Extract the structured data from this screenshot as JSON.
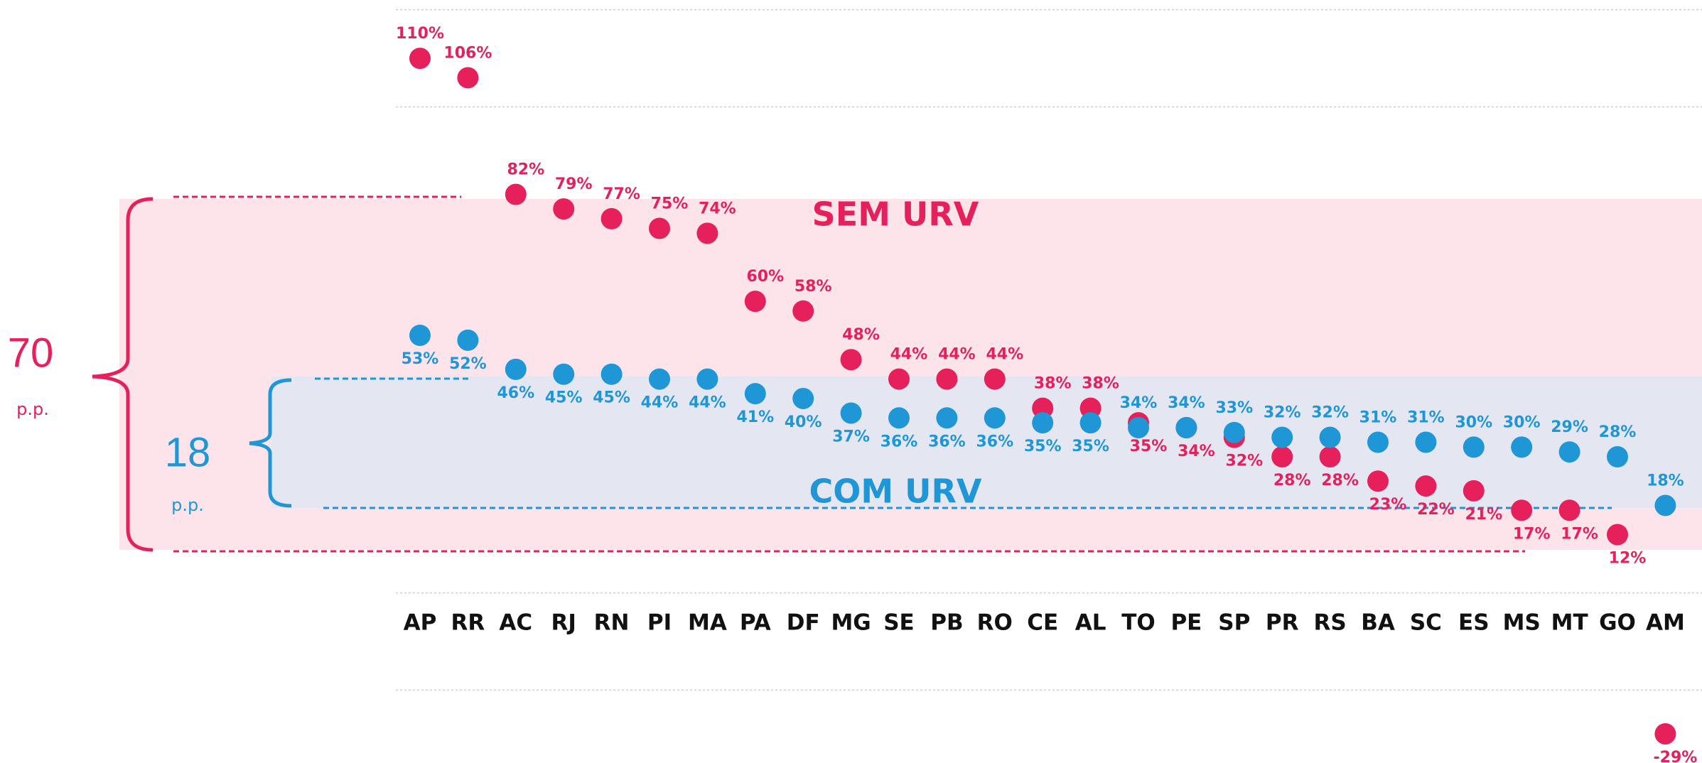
{
  "chart_data": {
    "type": "dot",
    "categories": [
      "AP",
      "RR",
      "AC",
      "RJ",
      "RN",
      "PI",
      "MA",
      "PA",
      "DF",
      "MG",
      "SE",
      "PB",
      "RO",
      "CE",
      "AL",
      "TO",
      "PE",
      "SP",
      "PR",
      "RS",
      "BA",
      "SC",
      "ES",
      "MS",
      "MT",
      "GO",
      "AM"
    ],
    "series": [
      {
        "name": "SEM URV",
        "color": "#e5205a",
        "values": [
          110,
          106,
          82,
          79,
          77,
          75,
          74,
          60,
          58,
          48,
          44,
          44,
          44,
          38,
          38,
          35,
          34,
          32,
          28,
          28,
          23,
          22,
          21,
          17,
          17,
          12,
          -29
        ],
        "value_labels": [
          "110%",
          "106%",
          "82%",
          "79%",
          "77%",
          "75%",
          "74%",
          "60%",
          "58%",
          "48%",
          "44%",
          "44%",
          "44%",
          "38%",
          "38%",
          "35%",
          "34%",
          "32%",
          "28%",
          "28%",
          "23%",
          "22%",
          "21%",
          "17%",
          "17%",
          "12%",
          "-29%"
        ]
      },
      {
        "name": "COM URV",
        "color": "#1f96d6",
        "values": [
          53,
          52,
          46,
          45,
          45,
          44,
          44,
          41,
          40,
          37,
          36,
          36,
          36,
          35,
          35,
          34,
          34,
          33,
          32,
          32,
          31,
          31,
          30,
          30,
          29,
          28,
          18
        ],
        "value_labels": [
          "53%",
          "52%",
          "46%",
          "45%",
          "45%",
          "44%",
          "44%",
          "41%",
          "40%",
          "37%",
          "36%",
          "36%",
          "36%",
          "35%",
          "35%",
          "34%",
          "34%",
          "33%",
          "32%",
          "32%",
          "31%",
          "31%",
          "30%",
          "30%",
          "29%",
          "28%",
          "18%"
        ]
      }
    ],
    "ylim": [
      -35,
      122
    ],
    "yticks": [
      -20,
      0,
      20,
      40,
      60,
      80,
      100,
      120
    ],
    "grid": true,
    "annotations": [
      {
        "text": "70",
        "unit": "p.p."
      },
      {
        "text": "18",
        "unit": "p.p."
      }
    ]
  }
}
